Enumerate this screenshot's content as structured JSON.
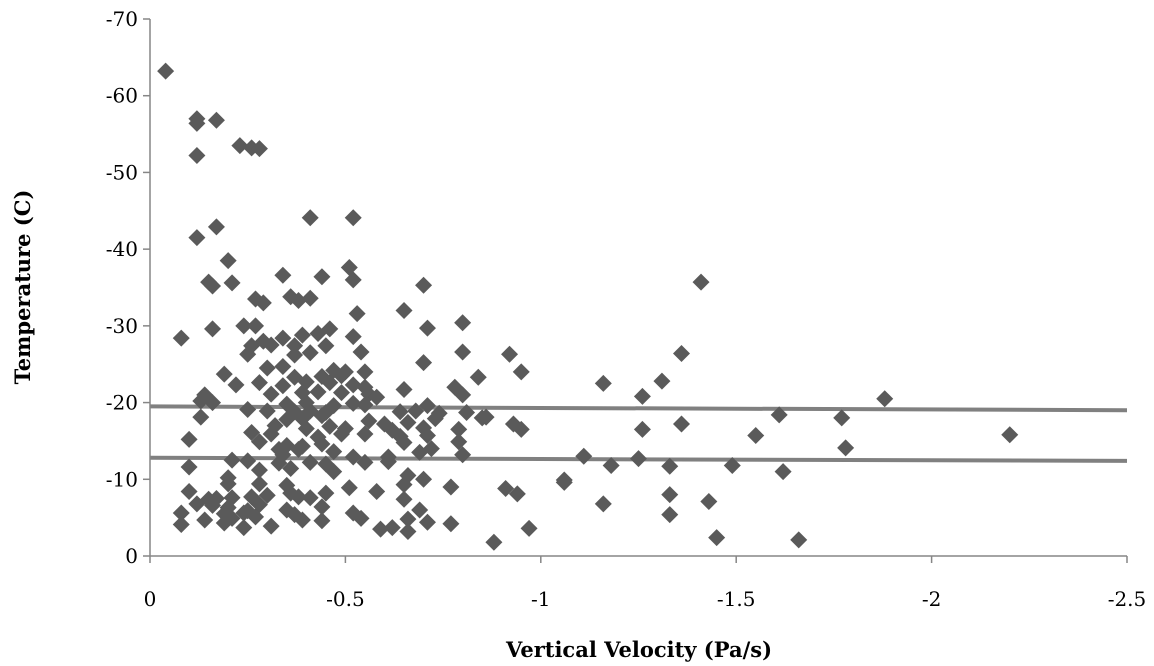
{
  "chart_data": {
    "type": "scatter",
    "title": "",
    "xlabel": "Vertical Velocity (Pa/s)",
    "ylabel": "Temperature (C)",
    "xlim": [
      0,
      -2.5
    ],
    "ylim": [
      0,
      -70
    ],
    "x_ticks": [
      0,
      -0.5,
      -1,
      -1.5,
      -2,
      -2.5
    ],
    "x_tick_labels": [
      "0",
      "-0.5",
      "-1",
      "-1.5",
      "-2",
      "-2.5"
    ],
    "y_ticks": [
      0,
      -10,
      -20,
      -30,
      -40,
      -50,
      -60,
      -70
    ],
    "y_tick_labels": [
      "0",
      "-10",
      "-20",
      "-30",
      "-40",
      "-50",
      "-60",
      "-70"
    ],
    "grid": false,
    "legend": "none",
    "marker": "diamond",
    "marker_color": "#5a5a5a",
    "line_color": "#808080",
    "axis_color": "#868686",
    "reference_lines": [
      {
        "x": [
          0,
          -2.5
        ],
        "y": [
          -19.5,
          -19.0
        ]
      },
      {
        "x": [
          0,
          -2.5
        ],
        "y": [
          -12.8,
          -12.4
        ]
      }
    ],
    "points": [
      [
        -0.04,
        -63.2
      ],
      [
        -0.12,
        -57.0
      ],
      [
        -0.12,
        -56.4
      ],
      [
        -0.17,
        -56.8
      ],
      [
        -0.12,
        -52.2
      ],
      [
        -0.23,
        -53.5
      ],
      [
        -0.26,
        -53.2
      ],
      [
        -0.28,
        -53.1
      ],
      [
        -0.52,
        -44.1
      ],
      [
        -0.41,
        -44.1
      ],
      [
        -0.17,
        -42.9
      ],
      [
        -0.12,
        -41.5
      ],
      [
        -0.2,
        -38.5
      ],
      [
        -0.51,
        -37.6
      ],
      [
        -0.34,
        -36.6
      ],
      [
        -0.44,
        -36.4
      ],
      [
        -0.52,
        -36.0
      ],
      [
        -0.15,
        -35.7
      ],
      [
        -0.16,
        -35.2
      ],
      [
        -0.21,
        -35.6
      ],
      [
        -0.7,
        -35.3
      ],
      [
        -1.41,
        -35.7
      ],
      [
        -0.27,
        -33.5
      ],
      [
        -0.36,
        -33.8
      ],
      [
        -0.38,
        -33.3
      ],
      [
        -0.41,
        -33.6
      ],
      [
        -0.29,
        -33.0
      ],
      [
        -0.53,
        -31.6
      ],
      [
        -0.65,
        -32.0
      ],
      [
        -0.8,
        -30.4
      ],
      [
        -0.24,
        -30.0
      ],
      [
        -0.27,
        -30.0
      ],
      [
        -0.16,
        -29.6
      ],
      [
        -0.46,
        -29.6
      ],
      [
        -0.71,
        -29.7
      ],
      [
        -0.08,
        -28.4
      ],
      [
        -0.29,
        -28.0
      ],
      [
        -0.34,
        -28.4
      ],
      [
        -0.39,
        -28.8
      ],
      [
        -0.43,
        -29.0
      ],
      [
        -0.52,
        -28.6
      ],
      [
        -0.26,
        -27.4
      ],
      [
        -0.31,
        -27.5
      ],
      [
        -0.37,
        -27.4
      ],
      [
        -0.41,
        -26.5
      ],
      [
        -0.45,
        -27.4
      ],
      [
        -0.25,
        -26.3
      ],
      [
        -0.37,
        -26.2
      ],
      [
        -0.54,
        -26.6
      ],
      [
        -0.8,
        -26.6
      ],
      [
        -0.92,
        -26.3
      ],
      [
        -1.36,
        -26.4
      ],
      [
        -0.7,
        -25.2
      ],
      [
        -0.3,
        -24.5
      ],
      [
        -0.34,
        -24.7
      ],
      [
        -0.47,
        -24.2
      ],
      [
        -0.5,
        -24.0
      ],
      [
        -0.55,
        -24.0
      ],
      [
        -0.95,
        -24.0
      ],
      [
        -0.19,
        -23.7
      ],
      [
        -0.37,
        -23.3
      ],
      [
        -0.44,
        -23.4
      ],
      [
        -0.49,
        -23.5
      ],
      [
        -0.84,
        -23.3
      ],
      [
        -1.31,
        -22.8
      ],
      [
        -0.22,
        -22.3
      ],
      [
        -0.28,
        -22.6
      ],
      [
        -0.34,
        -22.2
      ],
      [
        -0.4,
        -22.7
      ],
      [
        -0.46,
        -22.6
      ],
      [
        -0.52,
        -22.3
      ],
      [
        -0.55,
        -22.0
      ],
      [
        -0.65,
        -21.7
      ],
      [
        -0.78,
        -22.0
      ],
      [
        -1.16,
        -22.5
      ],
      [
        -0.14,
        -21.0
      ],
      [
        -0.31,
        -21.1
      ],
      [
        -0.39,
        -21.3
      ],
      [
        -0.43,
        -21.4
      ],
      [
        -0.49,
        -21.3
      ],
      [
        -0.56,
        -21.1
      ],
      [
        -0.58,
        -20.7
      ],
      [
        -0.8,
        -21.0
      ],
      [
        -1.26,
        -20.8
      ],
      [
        -0.13,
        -20.2
      ],
      [
        -0.16,
        -20.0
      ],
      [
        -0.35,
        -19.8
      ],
      [
        -0.4,
        -20.0
      ],
      [
        -0.47,
        -19.6
      ],
      [
        -0.52,
        -19.9
      ],
      [
        -0.55,
        -19.7
      ],
      [
        -0.71,
        -19.6
      ],
      [
        -1.88,
        -20.5
      ],
      [
        -0.25,
        -19.1
      ],
      [
        -0.3,
        -18.9
      ],
      [
        -0.37,
        -18.8
      ],
      [
        -0.41,
        -18.9
      ],
      [
        -0.45,
        -18.7
      ],
      [
        -0.64,
        -18.8
      ],
      [
        -0.68,
        -18.9
      ],
      [
        -0.74,
        -18.6
      ],
      [
        -0.81,
        -18.7
      ],
      [
        -1.61,
        -18.4
      ],
      [
        -0.13,
        -18.1
      ],
      [
        -0.35,
        -17.8
      ],
      [
        -0.39,
        -17.9
      ],
      [
        -0.44,
        -18.3
      ],
      [
        -0.56,
        -17.6
      ],
      [
        -0.6,
        -17.2
      ],
      [
        -0.66,
        -17.4
      ],
      [
        -0.73,
        -17.9
      ],
      [
        -0.85,
        -18.0
      ],
      [
        -0.86,
        -18.1
      ],
      [
        -1.36,
        -17.2
      ],
      [
        -1.77,
        -18.0
      ],
      [
        -0.32,
        -17.0
      ],
      [
        -0.4,
        -16.6
      ],
      [
        -0.46,
        -16.9
      ],
      [
        -0.5,
        -16.6
      ],
      [
        -0.62,
        -16.4
      ],
      [
        -0.7,
        -16.7
      ],
      [
        -0.79,
        -16.5
      ],
      [
        -0.93,
        -17.2
      ],
      [
        -0.95,
        -16.5
      ],
      [
        -1.26,
        -16.5
      ],
      [
        -0.26,
        -16.1
      ],
      [
        -0.31,
        -15.9
      ],
      [
        -0.43,
        -15.5
      ],
      [
        -0.49,
        -15.9
      ],
      [
        -0.55,
        -15.9
      ],
      [
        -0.64,
        -15.6
      ],
      [
        -0.71,
        -15.7
      ],
      [
        -1.55,
        -15.7
      ],
      [
        -2.2,
        -15.8
      ],
      [
        -0.1,
        -15.2
      ],
      [
        -0.28,
        -14.9
      ],
      [
        -0.35,
        -14.4
      ],
      [
        -0.39,
        -14.3
      ],
      [
        -0.44,
        -14.6
      ],
      [
        -0.65,
        -14.8
      ],
      [
        -0.79,
        -14.9
      ],
      [
        -0.33,
        -13.9
      ],
      [
        -0.38,
        -13.9
      ],
      [
        -0.47,
        -13.6
      ],
      [
        -0.69,
        -13.5
      ],
      [
        -0.72,
        -14.0
      ],
      [
        -0.8,
        -13.2
      ],
      [
        -1.78,
        -14.1
      ],
      [
        -0.34,
        -13.2
      ],
      [
        -0.52,
        -12.9
      ],
      [
        -0.61,
        -12.9
      ],
      [
        -1.11,
        -13.0
      ],
      [
        -1.25,
        -12.7
      ],
      [
        -0.21,
        -12.5
      ],
      [
        -0.25,
        -12.4
      ],
      [
        -0.33,
        -12.1
      ],
      [
        -0.41,
        -12.2
      ],
      [
        -0.45,
        -12.0
      ],
      [
        -0.55,
        -12.2
      ],
      [
        -0.61,
        -12.3
      ],
      [
        -1.18,
        -11.8
      ],
      [
        -1.33,
        -11.7
      ],
      [
        -1.49,
        -11.8
      ],
      [
        -0.1,
        -11.6
      ],
      [
        -0.28,
        -11.2
      ],
      [
        -0.36,
        -11.4
      ],
      [
        -0.47,
        -11.0
      ],
      [
        -1.62,
        -11.0
      ],
      [
        -0.2,
        -10.2
      ],
      [
        -0.66,
        -10.5
      ],
      [
        -0.7,
        -10.0
      ],
      [
        -1.06,
        -9.9
      ],
      [
        -1.06,
        -9.6
      ],
      [
        -0.2,
        -9.4
      ],
      [
        -0.28,
        -9.4
      ],
      [
        -0.35,
        -9.2
      ],
      [
        -0.65,
        -9.3
      ],
      [
        -0.77,
        -9.0
      ],
      [
        -0.91,
        -8.8
      ],
      [
        -0.1,
        -8.4
      ],
      [
        -0.3,
        -7.9
      ],
      [
        -0.36,
        -8.2
      ],
      [
        -0.45,
        -8.2
      ],
      [
        -0.51,
        -8.9
      ],
      [
        -0.58,
        -8.4
      ],
      [
        -0.94,
        -8.1
      ],
      [
        -1.33,
        -8.0
      ],
      [
        -0.15,
        -7.4
      ],
      [
        -0.17,
        -7.5
      ],
      [
        -0.21,
        -7.6
      ],
      [
        -0.26,
        -7.7
      ],
      [
        -0.38,
        -7.7
      ],
      [
        -0.41,
        -7.6
      ],
      [
        -0.65,
        -7.4
      ],
      [
        -1.43,
        -7.1
      ],
      [
        -1.16,
        -6.8
      ],
      [
        -0.12,
        -6.8
      ],
      [
        -0.16,
        -6.6
      ],
      [
        -0.2,
        -6.3
      ],
      [
        -0.28,
        -6.7
      ],
      [
        -0.44,
        -6.4
      ],
      [
        -0.35,
        -6.0
      ],
      [
        -0.25,
        -5.9
      ],
      [
        -0.69,
        -6.0
      ],
      [
        -0.08,
        -5.6
      ],
      [
        -0.19,
        -5.5
      ],
      [
        -0.24,
        -5.6
      ],
      [
        -0.37,
        -5.4
      ],
      [
        -0.52,
        -5.6
      ],
      [
        -1.33,
        -5.4
      ],
      [
        -0.14,
        -4.7
      ],
      [
        -0.21,
        -4.9
      ],
      [
        -0.27,
        -5.1
      ],
      [
        -0.39,
        -4.7
      ],
      [
        -0.44,
        -4.6
      ],
      [
        -0.54,
        -4.9
      ],
      [
        -0.66,
        -4.8
      ],
      [
        -0.71,
        -4.4
      ],
      [
        -0.08,
        -4.1
      ],
      [
        -0.19,
        -4.3
      ],
      [
        -0.24,
        -3.7
      ],
      [
        -0.31,
        -3.9
      ],
      [
        -0.59,
        -3.5
      ],
      [
        -0.62,
        -3.7
      ],
      [
        -0.66,
        -3.2
      ],
      [
        -0.77,
        -4.2
      ],
      [
        -0.97,
        -3.6
      ],
      [
        -0.88,
        -1.8
      ],
      [
        -1.45,
        -2.4
      ],
      [
        -1.66,
        -2.1
      ]
    ]
  }
}
